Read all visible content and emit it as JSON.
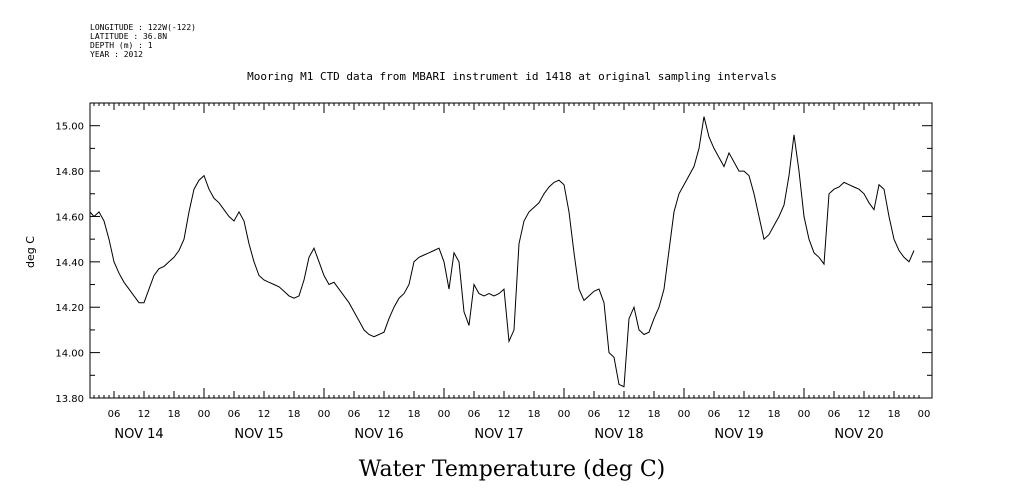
{
  "meta": {
    "longitude": "LONGITUDE : 122W(-122)",
    "latitude": "LATITUDE : 36.8N",
    "depth": "DEPTH (m) : 1",
    "year": "YEAR : 2012"
  },
  "chart_data": {
    "type": "line",
    "title": "Mooring M1 CTD data from MBARI instrument id 1418 at original sampling intervals",
    "xlabel": "Water Temperature (deg C)",
    "ylabel": "deg C",
    "ylim": [
      13.8,
      15.1
    ],
    "yticks": [
      "13.80",
      "14.00",
      "14.20",
      "14.40",
      "14.60",
      "14.80",
      "15.00"
    ],
    "xlim_hours": [
      0,
      166
    ],
    "hour_ticks": [
      "06",
      "12",
      "18",
      "00",
      "06",
      "12",
      "18",
      "00",
      "06",
      "12",
      "18",
      "00",
      "06",
      "12",
      "18",
      "00",
      "06",
      "12",
      "18",
      "00",
      "06",
      "12",
      "18",
      "00",
      "06",
      "12",
      "18",
      "00"
    ],
    "day_labels": [
      "NOV 14",
      "NOV 15",
      "NOV 16",
      "NOV 17",
      "NOV 18",
      "NOV 19",
      "NOV 20"
    ],
    "grid": false,
    "series": [
      {
        "color": "#000000",
        "points": [
          [
            0,
            14.61
          ],
          [
            1,
            14.62
          ],
          [
            2,
            14.6
          ],
          [
            3,
            14.62
          ],
          [
            4,
            14.58
          ],
          [
            5,
            14.5
          ],
          [
            6,
            14.4
          ],
          [
            7,
            14.35
          ],
          [
            8,
            14.31
          ],
          [
            9,
            14.28
          ],
          [
            10,
            14.25
          ],
          [
            11,
            14.22
          ],
          [
            12,
            14.22
          ],
          [
            13,
            14.28
          ],
          [
            14,
            14.34
          ],
          [
            15,
            14.37
          ],
          [
            16,
            14.38
          ],
          [
            17,
            14.4
          ],
          [
            18,
            14.42
          ],
          [
            19,
            14.45
          ],
          [
            20,
            14.5
          ],
          [
            21,
            14.62
          ],
          [
            22,
            14.72
          ],
          [
            23,
            14.76
          ],
          [
            24,
            14.78
          ],
          [
            25,
            14.72
          ],
          [
            26,
            14.68
          ],
          [
            27,
            14.66
          ],
          [
            28,
            14.63
          ],
          [
            29,
            14.6
          ],
          [
            30,
            14.58
          ],
          [
            31,
            14.62
          ],
          [
            32,
            14.58
          ],
          [
            33,
            14.48
          ],
          [
            34,
            14.4
          ],
          [
            35,
            14.34
          ],
          [
            36,
            14.32
          ],
          [
            37,
            14.31
          ],
          [
            38,
            14.3
          ],
          [
            39,
            14.29
          ],
          [
            40,
            14.27
          ],
          [
            41,
            14.25
          ],
          [
            42,
            14.24
          ],
          [
            43,
            14.25
          ],
          [
            44,
            14.32
          ],
          [
            45,
            14.42
          ],
          [
            46,
            14.46
          ],
          [
            47,
            14.4
          ],
          [
            48,
            14.34
          ],
          [
            49,
            14.3
          ],
          [
            50,
            14.31
          ],
          [
            51,
            14.28
          ],
          [
            52,
            14.25
          ],
          [
            53,
            14.22
          ],
          [
            54,
            14.18
          ],
          [
            55,
            14.14
          ],
          [
            56,
            14.1
          ],
          [
            57,
            14.08
          ],
          [
            58,
            14.07
          ],
          [
            59,
            14.08
          ],
          [
            60,
            14.09
          ],
          [
            61,
            14.15
          ],
          [
            62,
            14.2
          ],
          [
            63,
            14.24
          ],
          [
            64,
            14.26
          ],
          [
            65,
            14.3
          ],
          [
            66,
            14.4
          ],
          [
            67,
            14.42
          ],
          [
            68,
            14.43
          ],
          [
            69,
            14.44
          ],
          [
            70,
            14.45
          ],
          [
            71,
            14.46
          ],
          [
            72,
            14.4
          ],
          [
            73,
            14.28
          ],
          [
            74,
            14.44
          ],
          [
            75,
            14.4
          ],
          [
            76,
            14.18
          ],
          [
            77,
            14.12
          ],
          [
            78,
            14.3
          ],
          [
            79,
            14.26
          ],
          [
            80,
            14.25
          ],
          [
            81,
            14.26
          ],
          [
            82,
            14.25
          ],
          [
            83,
            14.26
          ],
          [
            84,
            14.28
          ],
          [
            85,
            14.05
          ],
          [
            86,
            14.1
          ],
          [
            87,
            14.48
          ],
          [
            88,
            14.58
          ],
          [
            89,
            14.62
          ],
          [
            90,
            14.64
          ],
          [
            91,
            14.66
          ],
          [
            92,
            14.7
          ],
          [
            93,
            14.73
          ],
          [
            94,
            14.75
          ],
          [
            95,
            14.76
          ],
          [
            96,
            14.74
          ],
          [
            97,
            14.62
          ],
          [
            98,
            14.44
          ],
          [
            99,
            14.28
          ],
          [
            100,
            14.23
          ],
          [
            101,
            14.25
          ],
          [
            102,
            14.27
          ],
          [
            103,
            14.28
          ],
          [
            104,
            14.22
          ],
          [
            105,
            14.0
          ],
          [
            106,
            13.98
          ],
          [
            107,
            13.86
          ],
          [
            108,
            13.85
          ],
          [
            109,
            14.15
          ],
          [
            110,
            14.2
          ],
          [
            111,
            14.1
          ],
          [
            112,
            14.08
          ],
          [
            113,
            14.09
          ],
          [
            114,
            14.15
          ],
          [
            115,
            14.2
          ],
          [
            116,
            14.28
          ],
          [
            117,
            14.45
          ],
          [
            118,
            14.62
          ],
          [
            119,
            14.7
          ],
          [
            120,
            14.74
          ],
          [
            121,
            14.78
          ],
          [
            122,
            14.82
          ],
          [
            123,
            14.9
          ],
          [
            124,
            15.04
          ],
          [
            125,
            14.95
          ],
          [
            126,
            14.9
          ],
          [
            127,
            14.86
          ],
          [
            128,
            14.82
          ],
          [
            129,
            14.88
          ],
          [
            130,
            14.84
          ],
          [
            131,
            14.8
          ],
          [
            132,
            14.8
          ],
          [
            133,
            14.78
          ],
          [
            134,
            14.7
          ],
          [
            135,
            14.6
          ],
          [
            136,
            14.5
          ],
          [
            137,
            14.52
          ],
          [
            138,
            14.56
          ],
          [
            139,
            14.6
          ],
          [
            140,
            14.65
          ],
          [
            141,
            14.78
          ],
          [
            142,
            14.96
          ],
          [
            143,
            14.8
          ],
          [
            144,
            14.6
          ],
          [
            145,
            14.5
          ],
          [
            146,
            14.44
          ],
          [
            147,
            14.42
          ],
          [
            148,
            14.39
          ],
          [
            149,
            14.7
          ],
          [
            150,
            14.72
          ],
          [
            151,
            14.73
          ],
          [
            152,
            14.75
          ],
          [
            153,
            14.74
          ],
          [
            154,
            14.73
          ],
          [
            155,
            14.72
          ],
          [
            156,
            14.7
          ],
          [
            157,
            14.66
          ],
          [
            158,
            14.63
          ],
          [
            159,
            14.74
          ],
          [
            160,
            14.72
          ],
          [
            161,
            14.6
          ],
          [
            162,
            14.5
          ],
          [
            163,
            14.45
          ],
          [
            164,
            14.42
          ],
          [
            165,
            14.4
          ],
          [
            166,
            14.45
          ]
        ]
      }
    ]
  }
}
